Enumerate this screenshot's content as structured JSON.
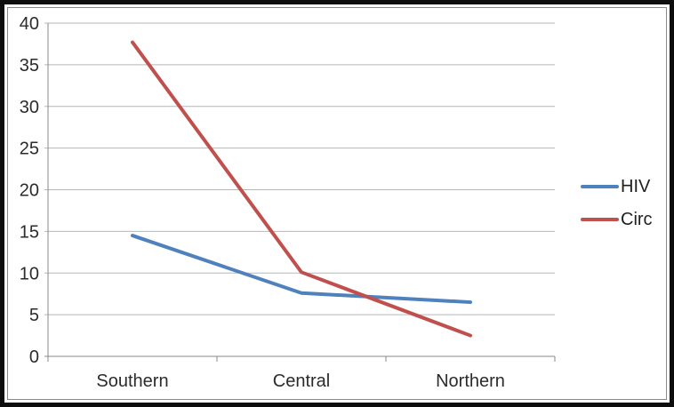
{
  "chart_data": {
    "type": "line",
    "title": "",
    "categories": [
      "Southern",
      "Central",
      "Northern"
    ],
    "series": [
      {
        "name": "HIV",
        "color": "#4F81BD",
        "values": [
          14.5,
          7.6,
          6.5
        ]
      },
      {
        "name": "Circ",
        "color": "#C0504D",
        "values": [
          37.7,
          10.1,
          2.5
        ]
      }
    ],
    "xlabel": "",
    "ylabel": "",
    "ylim": [
      0,
      40
    ],
    "yticks": [
      0,
      5,
      10,
      15,
      20,
      25,
      30,
      35,
      40
    ],
    "grid": true,
    "legend_position": "right",
    "colors": {
      "gridline": "#b7b7b7",
      "axis": "#8a8a8a",
      "tick_text": "#2b2b2b"
    }
  }
}
